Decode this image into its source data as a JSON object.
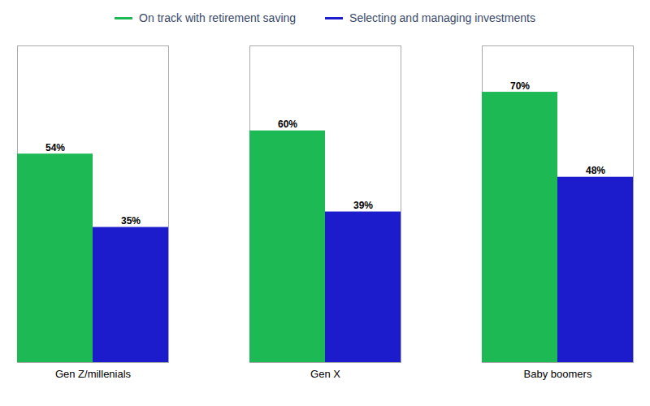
{
  "chart_data": {
    "type": "bar",
    "categories": [
      "Gen Z/millenials",
      "Gen X",
      "Baby boomers"
    ],
    "series": [
      {
        "name": "On track with retirement saving",
        "color": "#1db954",
        "values": [
          54,
          60,
          70
        ],
        "value_labels": [
          "54%",
          "60%",
          "70%"
        ]
      },
      {
        "name": "Selecting and managing investments",
        "color": "#1c1ccc",
        "values": [
          35,
          39,
          48
        ],
        "value_labels": [
          "35%",
          "39%",
          "48%"
        ]
      }
    ],
    "ylim": [
      0,
      82
    ],
    "grid": false,
    "legend": "top",
    "data_labels": true,
    "tick_labels": "x"
  }
}
